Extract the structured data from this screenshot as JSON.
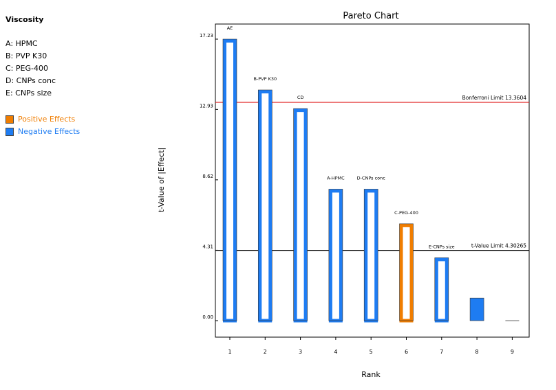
{
  "sidebar": {
    "title": "Viscosity",
    "factors": [
      "A: HPMC",
      "B: PVP K30",
      "C: PEG-400",
      "D: CNPs conc",
      "E: CNPs size"
    ],
    "legend": [
      {
        "label": "Positive Effects",
        "color": "#f07d00"
      },
      {
        "label": "Negative Effects",
        "color": "#1e7cf2"
      }
    ]
  },
  "chart_data": {
    "type": "bar",
    "title": "Pareto Chart",
    "xlabel": "Rank",
    "ylabel": "t-Value of |Effect|",
    "ylim": [
      0,
      18
    ],
    "yticks": [
      "0.00",
      "4.31",
      "8.62",
      "12.93",
      "17.23"
    ],
    "ytick_values": [
      0,
      4.31,
      8.62,
      12.93,
      17.23
    ],
    "categories": [
      "1",
      "2",
      "3",
      "4",
      "5",
      "6",
      "7",
      "8",
      "9"
    ],
    "values": [
      17.23,
      14.12,
      12.98,
      8.05,
      8.05,
      5.93,
      3.85,
      1.38,
      0.03
    ],
    "bar_labels": [
      "AE",
      "B-PVP K30",
      "CD",
      "A-HPMC",
      "D-CNPs conc",
      "C-PEG-400",
      "E-CNPs size",
      "",
      ""
    ],
    "effect_sign": [
      "negative",
      "negative",
      "negative",
      "negative",
      "negative",
      "positive",
      "negative",
      "negative",
      "negative"
    ],
    "hollow": [
      true,
      true,
      true,
      true,
      true,
      true,
      true,
      false,
      false
    ],
    "limits": [
      {
        "label": "Bonferroni Limit 13.3604",
        "value": 13.3604,
        "color": "#e02020"
      },
      {
        "label": "t-Value Limit 4.30265",
        "value": 4.30265,
        "color": "#000000"
      }
    ],
    "colors": {
      "positive": "#f07d00",
      "negative": "#1e7cf2"
    }
  }
}
